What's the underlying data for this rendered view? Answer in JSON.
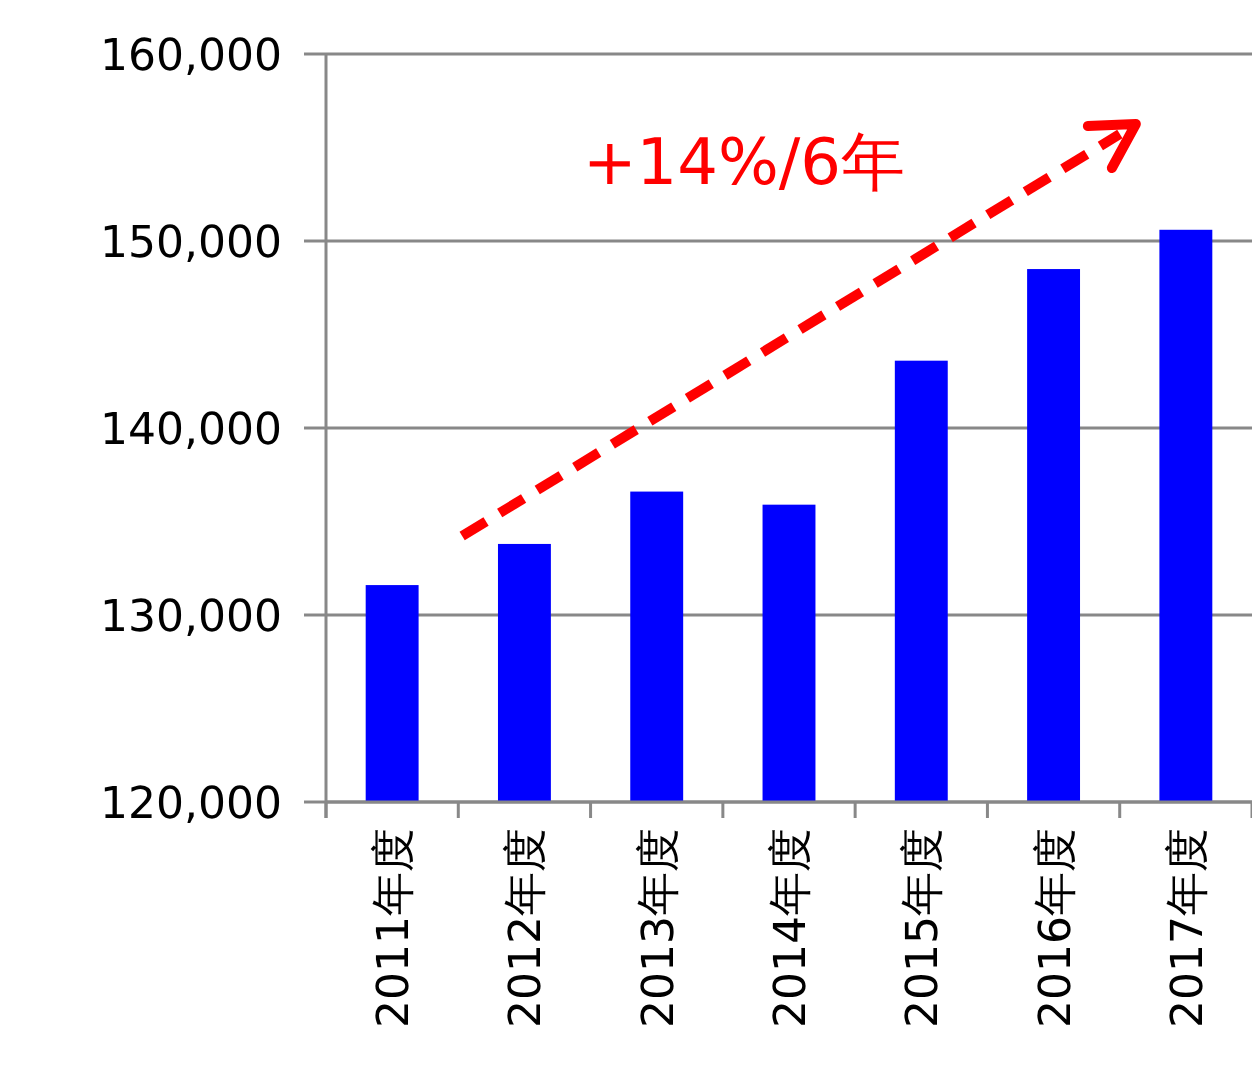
{
  "chart_data": {
    "type": "bar",
    "categories": [
      "2011年度",
      "2012年度",
      "2013年度",
      "2014年度",
      "2015年度",
      "2016年度",
      "2017年度"
    ],
    "values": [
      131600,
      133800,
      136600,
      135900,
      143600,
      148500,
      150600
    ],
    "color": "#0000ff",
    "ylim": [
      120000,
      160000
    ],
    "yticks": [
      {
        "value": 120000,
        "label": "120,000"
      },
      {
        "value": 130000,
        "label": "130,000"
      },
      {
        "value": 140000,
        "label": "140,000"
      },
      {
        "value": 150000,
        "label": "150,000"
      },
      {
        "value": 160000,
        "label": "160,000"
      }
    ],
    "grid": "y",
    "annotations": [
      "+14%/6年"
    ]
  }
}
